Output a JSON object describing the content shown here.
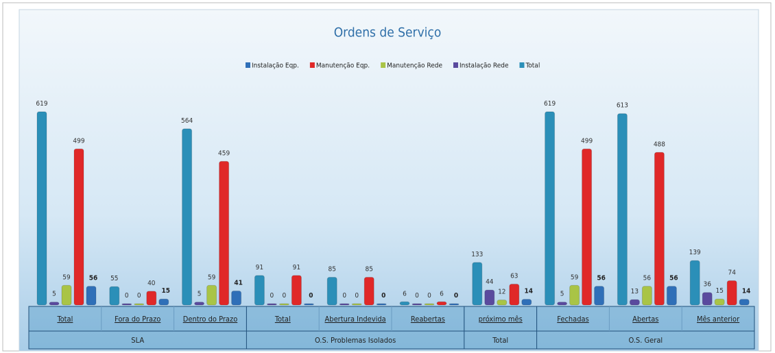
{
  "chart_data": {
    "type": "bar",
    "title": "Ordens de Serviço",
    "categories": [
      "Total",
      "Fora do Prazo",
      "Dentro do Prazo",
      "Total",
      "Abertura Indevida",
      "Reabertas",
      "próximo mês",
      "Fechadas",
      "Abertas",
      "Mês anterior"
    ],
    "groups": [
      {
        "name": "SLA",
        "size": 3
      },
      {
        "name": "O.S. Problemas Isolados",
        "size": 3
      },
      {
        "name": "Total",
        "size": 1
      },
      {
        "name": "O.S. Geral",
        "size": 3
      }
    ],
    "series": [
      {
        "name": "Instalação Eqp.",
        "color": "#2f6fb8",
        "values": [
          56,
          15,
          41,
          0,
          0,
          0,
          14,
          56,
          56,
          14
        ]
      },
      {
        "name": "Manutenção Eqp.",
        "color": "#e02828",
        "values": [
          499,
          40,
          459,
          91,
          85,
          6,
          63,
          499,
          488,
          74
        ]
      },
      {
        "name": "Manutenção Rede",
        "color": "#a9c446",
        "values": [
          59,
          0,
          59,
          0,
          0,
          0,
          12,
          59,
          56,
          15
        ]
      },
      {
        "name": "Instalação Rede",
        "color": "#5a4a9e",
        "values": [
          5,
          0,
          5,
          0,
          0,
          0,
          44,
          5,
          13,
          36
        ]
      },
      {
        "name": "Total",
        "color": "#2b8fb8",
        "values": [
          619,
          55,
          564,
          91,
          85,
          6,
          133,
          619,
          613,
          139
        ]
      }
    ]
  }
}
